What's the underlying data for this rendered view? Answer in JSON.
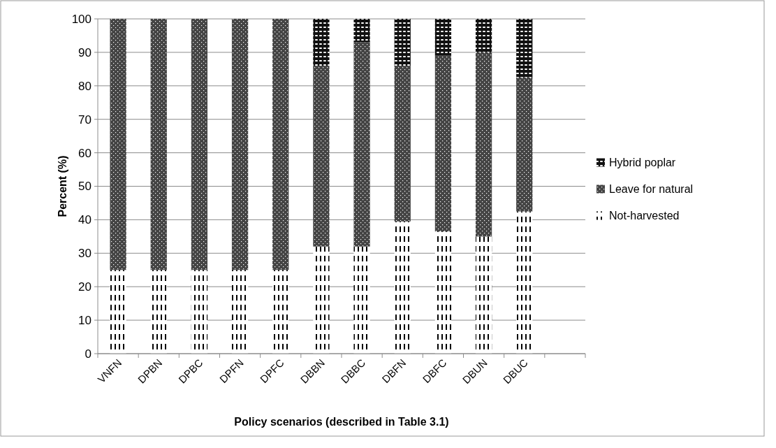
{
  "chart_data": {
    "type": "bar",
    "stacked": true,
    "xlabel": "Policy scenarios (described in Table 3.1)",
    "ylabel": "Percent (%)",
    "categories": [
      "VNFN",
      "DPBN",
      "DPBC",
      "DPFN",
      "DPFC",
      "DBBN",
      "DBBC",
      "DBFN",
      "DBFC",
      "DBUN",
      "DBUC",
      null
    ],
    "series": [
      {
        "name": "Not-harvested",
        "color": "#ffffff",
        "values": [
          25,
          25,
          25,
          25,
          25,
          32,
          32,
          39.5,
          36.5,
          35,
          42.5,
          null
        ]
      },
      {
        "name": "Leave for natural",
        "color": "#444444",
        "values": [
          75,
          75,
          75,
          75,
          75,
          54,
          61,
          46.5,
          52.5,
          55,
          40,
          null
        ]
      },
      {
        "name": "Hybrid poplar",
        "color": "#111111",
        "values": [
          0,
          0,
          0,
          0,
          0,
          14,
          7,
          14,
          11,
          10,
          17.5,
          null
        ]
      }
    ],
    "ylim": [
      0,
      100
    ],
    "yticks": [
      0,
      10,
      20,
      30,
      40,
      50,
      60,
      70,
      80,
      90,
      100
    ],
    "grid": "y",
    "legend": "right"
  }
}
